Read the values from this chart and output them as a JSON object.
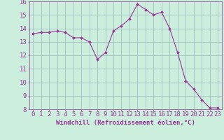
{
  "x": [
    0,
    1,
    2,
    3,
    4,
    5,
    6,
    7,
    8,
    9,
    10,
    11,
    12,
    13,
    14,
    15,
    16,
    17,
    18,
    19,
    20,
    21,
    22,
    23
  ],
  "y": [
    13.6,
    13.7,
    13.7,
    13.8,
    13.7,
    13.3,
    13.3,
    13.0,
    11.7,
    12.2,
    13.8,
    14.2,
    14.7,
    15.8,
    15.4,
    15.0,
    15.2,
    14.0,
    12.2,
    10.1,
    9.5,
    8.7,
    8.1,
    8.1
  ],
  "line_color": "#993399",
  "marker_color": "#993399",
  "bg_color": "#cceedd",
  "grid_color": "#99bbbb",
  "xlabel": "Windchill (Refroidissement éolien,°C)",
  "xlim": [
    -0.5,
    23.5
  ],
  "ylim": [
    8,
    16
  ],
  "yticks": [
    8,
    9,
    10,
    11,
    12,
    13,
    14,
    15,
    16
  ],
  "xticks": [
    0,
    1,
    2,
    3,
    4,
    5,
    6,
    7,
    8,
    9,
    10,
    11,
    12,
    13,
    14,
    15,
    16,
    17,
    18,
    19,
    20,
    21,
    22,
    23
  ],
  "axis_color": "#993399",
  "tick_color": "#993399",
  "label_fontsize": 6.5,
  "tick_fontsize": 6.5
}
